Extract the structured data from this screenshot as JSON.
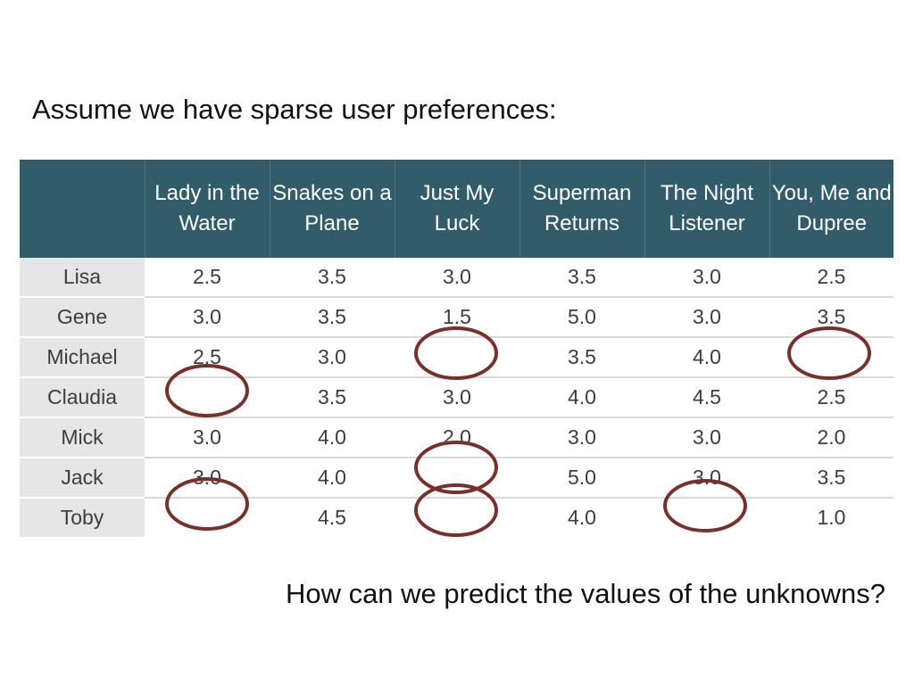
{
  "title": "Assume we have sparse user preferences:",
  "question": "How can we predict the values of the unknowns?",
  "table": {
    "columns": [
      "Lady in the Water",
      "Snakes on a Plane",
      "Just My Luck",
      "Superman Returns",
      "The Night Listener",
      "You, Me and Dupree"
    ],
    "rows": [
      {
        "name": "Lisa",
        "values": [
          "2.5",
          "3.5",
          "3.0",
          "3.5",
          "3.0",
          "2.5"
        ]
      },
      {
        "name": "Gene",
        "values": [
          "3.0",
          "3.5",
          "1.5",
          "5.0",
          "3.0",
          "3.5"
        ]
      },
      {
        "name": "Michael",
        "values": [
          "2.5",
          "3.0",
          "",
          "3.5",
          "4.0",
          ""
        ]
      },
      {
        "name": "Claudia",
        "values": [
          "",
          "3.5",
          "3.0",
          "4.0",
          "4.5",
          "2.5"
        ]
      },
      {
        "name": "Mick",
        "values": [
          "3.0",
          "4.0",
          "2.0",
          "3.0",
          "3.0",
          "2.0"
        ]
      },
      {
        "name": "Jack",
        "values": [
          "3.0",
          "4.0",
          "",
          "5.0",
          "3.0",
          "3.5"
        ]
      },
      {
        "name": "Toby",
        "values": [
          "",
          "4.5",
          "",
          "4.0",
          "",
          "1.0"
        ]
      }
    ]
  },
  "unknown_marker_color": "#7a3029"
}
